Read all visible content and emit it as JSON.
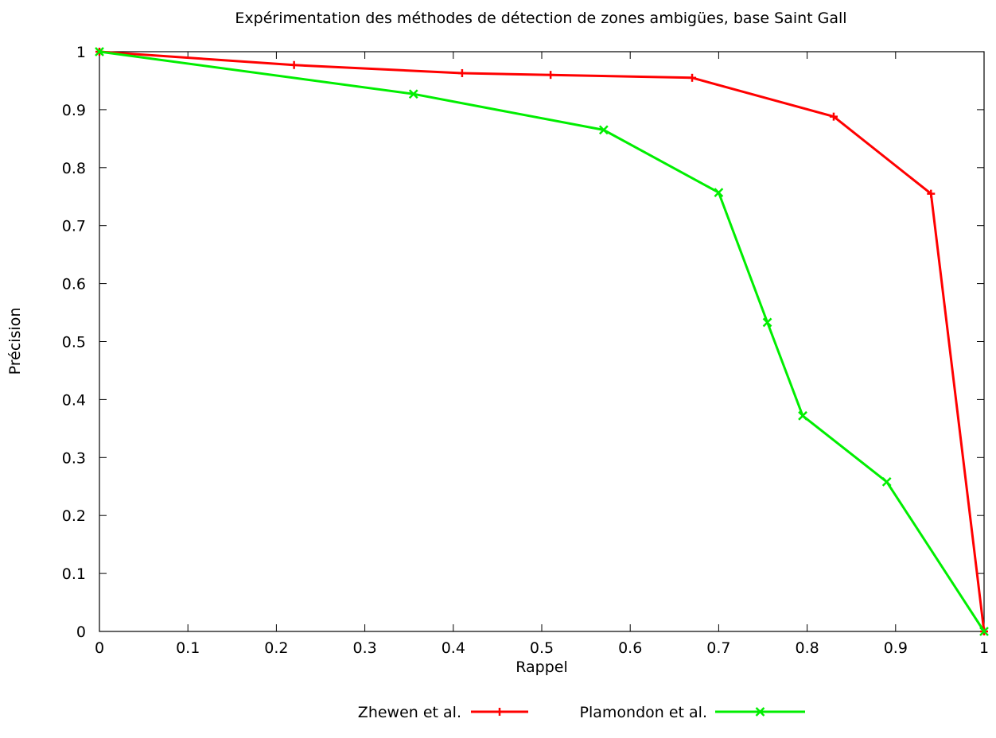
{
  "chart_data": {
    "type": "line",
    "title": "Expérimentation des méthodes de détection de zones ambigües, base Saint Gall",
    "xlabel": "Rappel",
    "ylabel": "Précision",
    "xlim": [
      0,
      1
    ],
    "ylim": [
      0,
      1
    ],
    "x_ticks": [
      "0",
      "0.1",
      "0.2",
      "0.3",
      "0.4",
      "0.5",
      "0.6",
      "0.7",
      "0.8",
      "0.9",
      "1"
    ],
    "y_ticks": [
      "0",
      "0.1",
      "0.2",
      "0.3",
      "0.4",
      "0.5",
      "0.6",
      "0.7",
      "0.8",
      "0.9",
      "1"
    ],
    "grid": false,
    "legend_position": "bottom-center",
    "series": [
      {
        "name": "Zhewen et al.",
        "color": "#ff0000",
        "marker": "plus",
        "x": [
          0,
          0.22,
          0.41,
          0.51,
          0.67,
          0.83,
          0.94,
          1.0
        ],
        "y": [
          1.0,
          0.977,
          0.963,
          0.96,
          0.955,
          0.888,
          0.755,
          0.0
        ]
      },
      {
        "name": "Plamondon et al.",
        "color": "#00ee00",
        "marker": "cross",
        "x": [
          0,
          0.355,
          0.57,
          0.7,
          0.755,
          0.795,
          0.89,
          1.0
        ],
        "y": [
          1.0,
          0.927,
          0.865,
          0.757,
          0.533,
          0.372,
          0.258,
          0.0
        ]
      }
    ]
  }
}
